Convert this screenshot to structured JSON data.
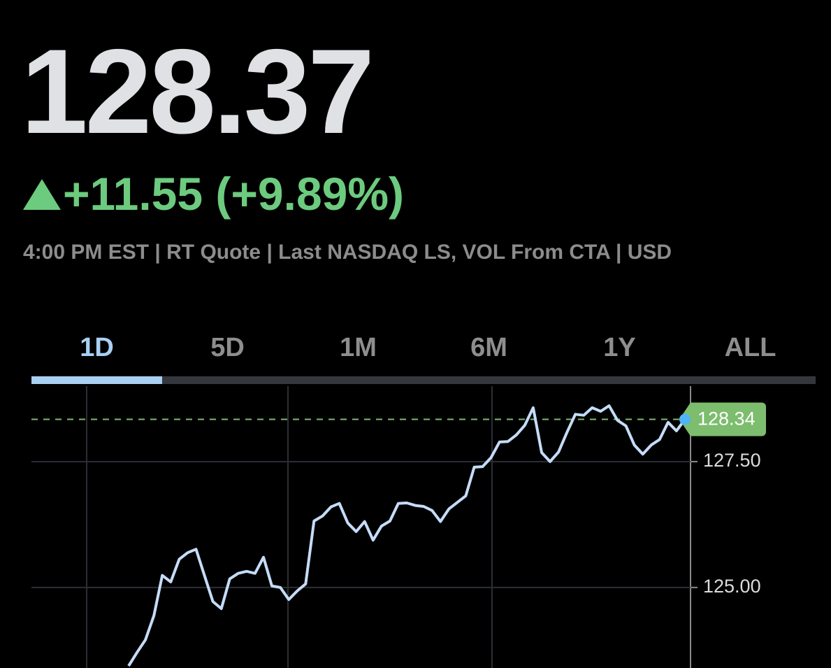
{
  "header": {
    "price": "128.37",
    "change": "+11.55 (+9.89%)",
    "info": "4:00 PM EST | RT Quote | Last NASDAQ LS, VOL From CTA | USD"
  },
  "tabs": {
    "items": [
      "1D",
      "5D",
      "1M",
      "6M",
      "1Y",
      "ALL"
    ],
    "active": "1D"
  },
  "chart_data": {
    "type": "line",
    "series": [
      {
        "color": "#c5dcf8",
        "values": [
          123.44,
          123.71,
          123.96,
          124.44,
          125.24,
          125.11,
          125.56,
          125.69,
          125.76,
          125.24,
          124.72,
          124.58,
          125.17,
          125.28,
          125.32,
          125.28,
          125.6,
          125.03,
          125.0,
          124.76,
          124.93,
          125.07,
          126.32,
          126.42,
          126.6,
          126.67,
          126.28,
          126.11,
          126.31,
          125.94,
          126.22,
          126.32,
          126.67,
          126.68,
          126.63,
          126.61,
          126.53,
          126.31,
          126.56,
          126.69,
          126.82,
          127.39,
          127.4,
          127.58,
          127.89,
          127.9,
          128.03,
          128.22,
          128.57,
          127.68,
          127.5,
          127.69,
          128.08,
          128.44,
          128.42,
          128.57,
          128.5,
          128.61,
          128.32,
          128.21,
          127.83,
          127.65,
          127.83,
          127.94,
          128.28,
          128.11,
          128.34
        ]
      }
    ],
    "ylim": [
      123.4,
      129.0
    ],
    "yticks": [
      {
        "value": 125,
        "label": "125.00"
      },
      {
        "value": 127.5,
        "label": "127.50"
      }
    ],
    "last_value": 128.34,
    "last_color": "#7dbd6e",
    "grid": true
  }
}
